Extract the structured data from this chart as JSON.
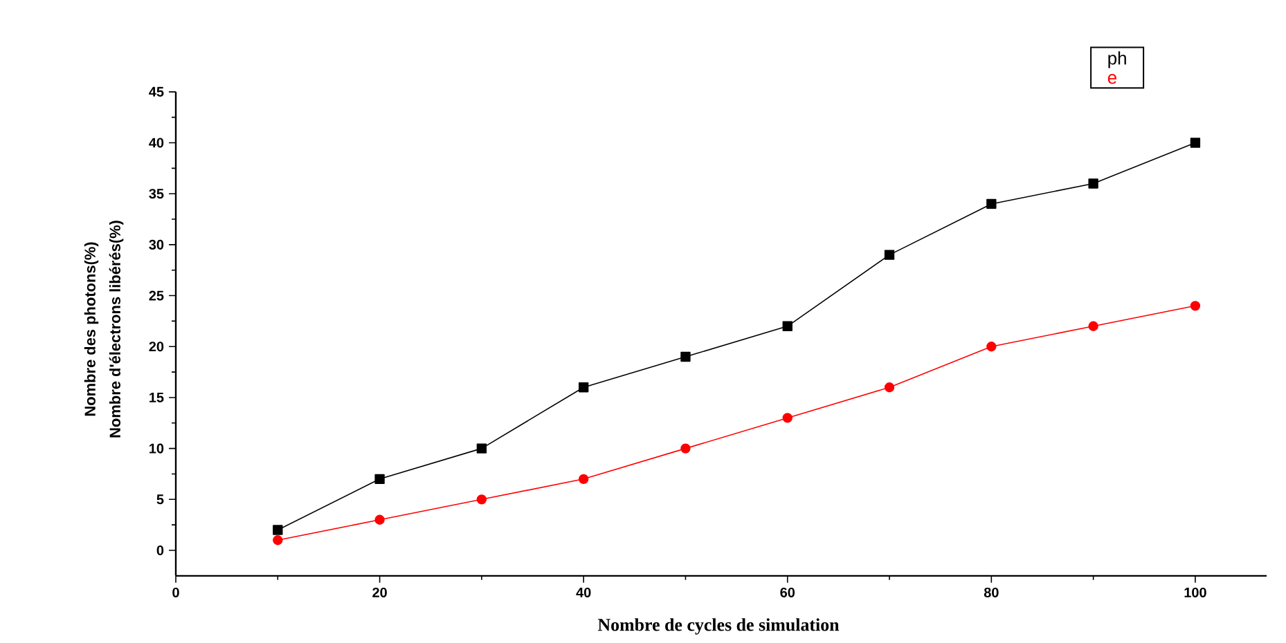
{
  "chart_data": {
    "type": "line",
    "xlabel": "Nombre de cycles de simulation",
    "ylabel": "Nombre des photons(%)",
    "annotations": [
      "Nombre d'électrons libérés(%)"
    ],
    "x": [
      10,
      20,
      30,
      40,
      50,
      60,
      70,
      80,
      90,
      100
    ],
    "series": [
      {
        "name": "ph",
        "color": "#000000",
        "marker": "square",
        "values": [
          2,
          7,
          10,
          16,
          19,
          22,
          29,
          34,
          36,
          40
        ]
      },
      {
        "name": "e",
        "color": "#ff0000",
        "marker": "circle",
        "values": [
          1,
          3,
          5,
          7,
          10,
          13,
          16,
          20,
          22,
          24
        ]
      }
    ],
    "xlim": [
      0,
      107
    ],
    "xticks": [
      0,
      20,
      40,
      60,
      80,
      100
    ],
    "ylim": [
      -2.5,
      45
    ],
    "yticks": [
      0,
      5,
      10,
      15,
      20,
      25,
      30,
      35,
      40,
      45
    ],
    "legend": "top right",
    "line_style": "solid"
  }
}
